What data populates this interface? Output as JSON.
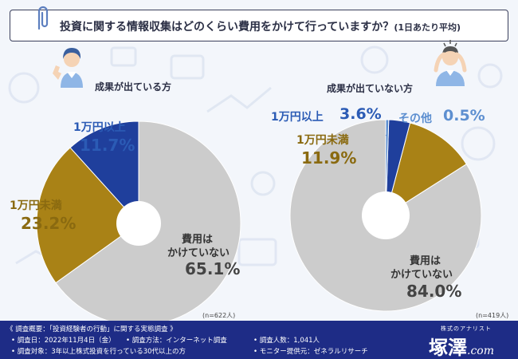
{
  "title": {
    "main": "投資に関する情報収集はどのくらい費用をかけて行っていますか？",
    "sub": "(1日あたり平均)"
  },
  "colors": {
    "gray": "#cccccc",
    "gold": "#a98216",
    "blue": "#1f3f9c",
    "light_blue": "#5d8fd0",
    "footer": "#1e2c86"
  },
  "chart_data": [
    {
      "type": "pie",
      "title": "成果が出ている方",
      "start_angle_deg": 0,
      "direction": "clockwise",
      "slices": [
        {
          "label": "費用は かけていない",
          "label_line1": "費用は",
          "label_line2": "かけていない",
          "value": 65.1,
          "display": "65.1%",
          "color": "#cccccc"
        },
        {
          "label": "1万円未満",
          "value": 23.2,
          "display": "23.2%",
          "color": "#a98216"
        },
        {
          "label": "1万円以上",
          "value": 11.7,
          "display": "11.7%",
          "color": "#1f3f9c"
        }
      ],
      "n_note": "(n=622人)"
    },
    {
      "type": "pie",
      "title": "成果が出ていない方",
      "start_angle_deg": 0,
      "direction": "counterclockwise_from_top",
      "slices": [
        {
          "label": "費用は かけていない",
          "label_line1": "費用は",
          "label_line2": "かけていない",
          "value": 84.0,
          "display": "84.0%",
          "color": "#cccccc"
        },
        {
          "label": "1万円未満",
          "value": 11.9,
          "display": "11.9%",
          "color": "#a98216"
        },
        {
          "label": "1万円以上",
          "value": 3.6,
          "display": "3.6%",
          "color": "#1f3f9c"
        },
        {
          "label": "その他",
          "value": 0.5,
          "display": "0.5%",
          "color": "#5d8fd0"
        }
      ],
      "n_note": "(n=419人)"
    }
  ],
  "footer": {
    "survey_heading": "《 調査概要：「投資経験者の行動」に関する実態調査 》",
    "date": "• 調査日：2022年11月4日（金）",
    "method": "• 調査方法：インターネット調査",
    "count": "• 調査人数：1,041人",
    "target": "• 調査対象：3年以上株式投資を行っている30代以上の方",
    "provider": "• モニター提供元：ゼネラルリサーチ",
    "brand_small": "株式のアナリスト",
    "brand_main": "塚澤",
    "brand_domain": ".com"
  }
}
